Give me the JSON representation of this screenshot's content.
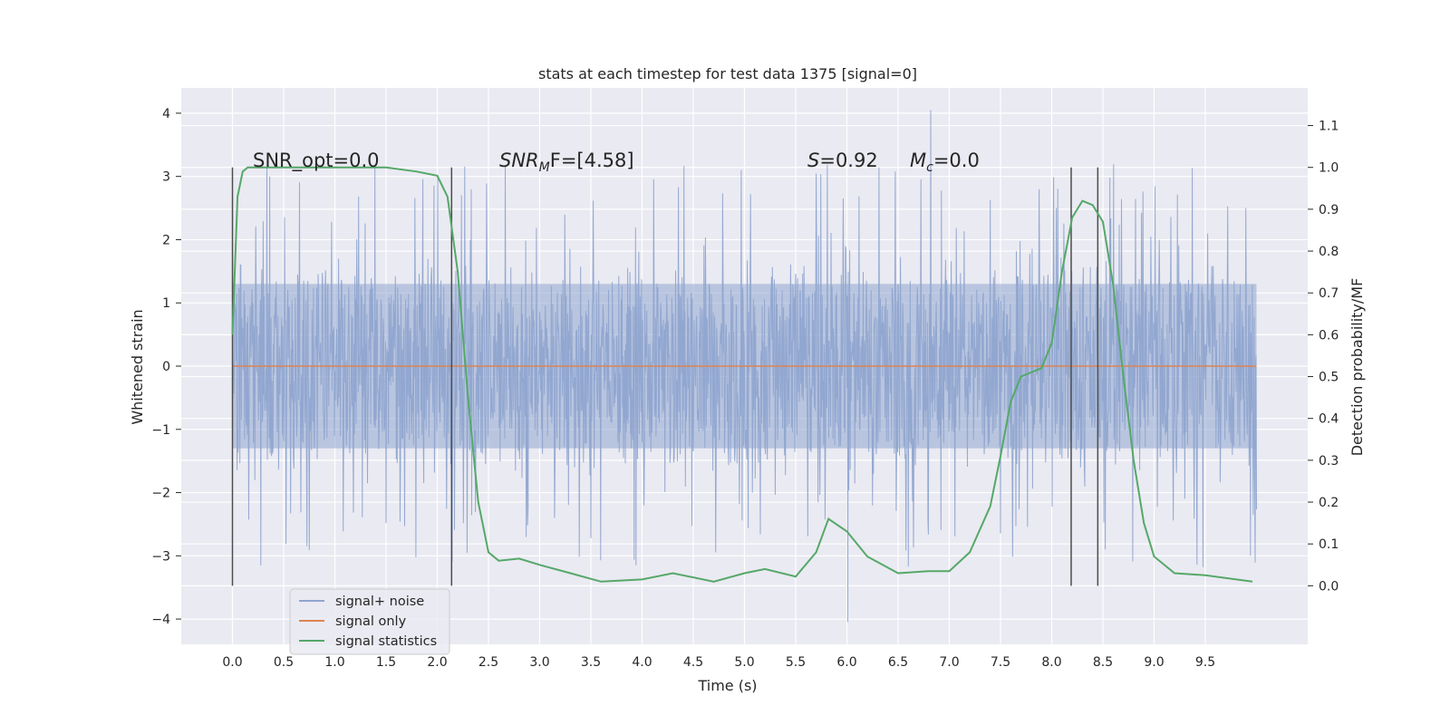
{
  "chart_data": {
    "type": "line",
    "title": "stats at each timestep for test data 1375 [signal=0]",
    "xlabel": "Time (s)",
    "ylabel": "Whitened strain",
    "y2label": "Detection probability/MF",
    "xlim": [
      -0.5,
      10.5
    ],
    "ylim": [
      -4.4,
      4.4
    ],
    "y2lim": [
      -0.14,
      1.19
    ],
    "x_ticks": [
      "0.0",
      "0.5",
      "1.0",
      "1.5",
      "2.0",
      "2.5",
      "3.0",
      "3.5",
      "4.0",
      "4.5",
      "5.0",
      "5.5",
      "6.0",
      "6.5",
      "7.0",
      "7.5",
      "8.0",
      "8.5",
      "9.0",
      "9.5"
    ],
    "y_ticks": [
      "4",
      "3",
      "2",
      "1",
      "0",
      "−1",
      "−2",
      "−3",
      "−4"
    ],
    "y2_ticks": [
      "1.1",
      "1.0",
      "0.9",
      "0.8",
      "0.7",
      "0.6",
      "0.5",
      "0.4",
      "0.3",
      "0.2",
      "0.1",
      "0.0"
    ],
    "grid": true,
    "legend_position": "lower-left",
    "colors": {
      "background": "#eaeaf2",
      "grid": "#ffffff",
      "noise": "#8fa5cf",
      "signal_only": "#dd8452",
      "statistics": "#55a868",
      "marker_lines": "#4d4d4d"
    },
    "annotations": {
      "snr_opt": "SNR_opt=0.0",
      "snr_mf_base": "SNR",
      "snr_mf_sub": "M",
      "snr_mf_rest": "F=[4.58]",
      "s_var": "S",
      "s_rest": "=0.92",
      "mc_var": "M",
      "mc_sub": "c",
      "mc_rest": "=0.0"
    },
    "vertical_markers": [
      0.0,
      2.14,
      8.19,
      8.45
    ],
    "series": [
      {
        "name": "signal+ noise",
        "kind": "noise",
        "x_range": [
          0.0,
          10.0
        ],
        "envelope_upper": 1.3,
        "envelope_lower": -1.3,
        "peak_max": 4.05,
        "peak_min": -4.05
      },
      {
        "name": "signal only",
        "kind": "flat",
        "x": [
          0.0,
          10.0
        ],
        "y": [
          0.0,
          0.0
        ]
      },
      {
        "name": "signal statistics",
        "kind": "line",
        "axis": "right",
        "x": [
          0.0,
          0.05,
          0.1,
          0.15,
          0.2,
          0.3,
          0.5,
          0.8,
          1.0,
          1.5,
          1.8,
          2.0,
          2.1,
          2.2,
          2.3,
          2.4,
          2.5,
          2.6,
          2.8,
          3.0,
          3.3,
          3.6,
          4.0,
          4.3,
          4.7,
          5.0,
          5.2,
          5.5,
          5.7,
          5.82,
          6.0,
          6.2,
          6.5,
          6.8,
          7.0,
          7.2,
          7.4,
          7.5,
          7.6,
          7.7,
          7.9,
          8.0,
          8.1,
          8.2,
          8.3,
          8.4,
          8.5,
          8.6,
          8.7,
          8.8,
          8.9,
          9.0,
          9.2,
          9.5,
          9.96
        ],
        "y": [
          0.6,
          0.93,
          0.99,
          1.0,
          1.0,
          1.0,
          1.0,
          1.0,
          1.0,
          1.0,
          0.99,
          0.98,
          0.93,
          0.75,
          0.45,
          0.2,
          0.08,
          0.06,
          0.065,
          0.05,
          0.03,
          0.01,
          0.015,
          0.03,
          0.01,
          0.03,
          0.04,
          0.022,
          0.08,
          0.16,
          0.13,
          0.07,
          0.03,
          0.035,
          0.035,
          0.08,
          0.19,
          0.31,
          0.44,
          0.5,
          0.52,
          0.58,
          0.75,
          0.88,
          0.92,
          0.91,
          0.87,
          0.72,
          0.5,
          0.3,
          0.15,
          0.07,
          0.03,
          0.025,
          0.01
        ]
      }
    ]
  }
}
